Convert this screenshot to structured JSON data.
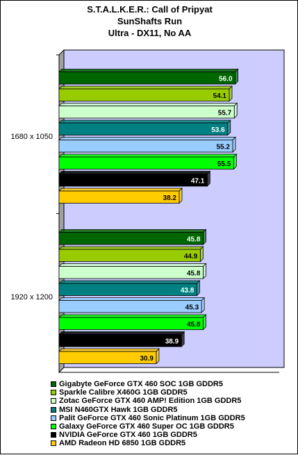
{
  "chart_data": {
    "type": "bar",
    "orientation": "horizontal",
    "title": [
      "S.T.A.L.K.E.R.: Call of Pripyat",
      "SunShafts Run",
      "Ultra - DX11, No AA"
    ],
    "categories": [
      "1680 x 1050",
      "1920 x 1200"
    ],
    "xlim": [
      0,
      70
    ],
    "grid": false,
    "plot_background": "#ccccff",
    "legend_position": "bottom",
    "series": [
      {
        "name": "Gigabyte GeForce GTX 460 SOC 1GB GDDR5",
        "color": "#006600",
        "label_color": "#ffffff",
        "values": [
          56.0,
          45.8
        ],
        "labels": [
          "56.0",
          "45.8"
        ]
      },
      {
        "name": "Sparkle Calibre X460G 1GB GDDR5",
        "color": "#99cc00",
        "label_color": "#000000",
        "values": [
          54.1,
          44.9
        ],
        "labels": [
          "54.1",
          "44.9"
        ]
      },
      {
        "name": "Zotac GeForce GTX 460 AMP! Edition 1GB GDDR5",
        "color": "#ccffcc",
        "label_color": "#000000",
        "values": [
          55.7,
          45.8
        ],
        "labels": [
          "55.7",
          "45.8"
        ]
      },
      {
        "name": "MSI N460GTX Hawk 1GB GDDR5",
        "color": "#008080",
        "label_color": "#ffffff",
        "values": [
          53.6,
          43.8
        ],
        "labels": [
          "53.6",
          "43.8"
        ]
      },
      {
        "name": "Palit GeForce GTX 460 Sonic Platinum 1GB GDDR5",
        "color": "#99ccff",
        "label_color": "#000000",
        "values": [
          55.2,
          45.3
        ],
        "labels": [
          "55.2",
          "45.3"
        ]
      },
      {
        "name": "Galaxy GeForce GTX 460 Super OC 1GB GDDR5",
        "color": "#00ff00",
        "label_color": "#000000",
        "values": [
          55.5,
          45.8
        ],
        "labels": [
          "55.5",
          "45.8"
        ]
      },
      {
        "name": "NVIDIA GeForce GTX 460 1GB GDDR5",
        "color": "#000000",
        "label_color": "#ffffff",
        "values": [
          47.1,
          38.9
        ],
        "labels": [
          "47.1",
          "38.9"
        ]
      },
      {
        "name": "AMD Radeon HD 6850 1GB GDDR5",
        "color": "#ffcc00",
        "label_color": "#000000",
        "values": [
          38.2,
          30.9
        ],
        "labels": [
          "38.2",
          "30.9"
        ]
      }
    ]
  }
}
